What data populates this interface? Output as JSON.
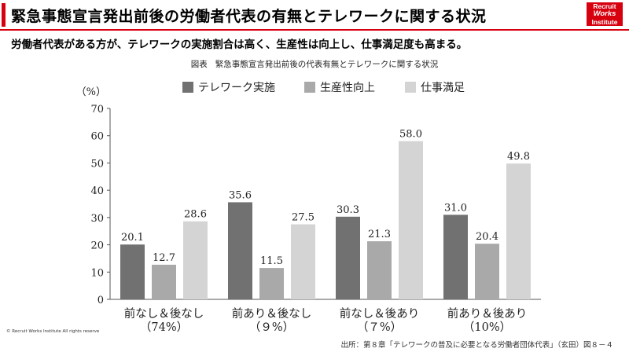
{
  "header": {
    "title": "緊急事態宣言発出前後の労働者代表の有無とテレワークに関する状況",
    "logo": [
      "Recruit",
      "Works",
      "Institute"
    ]
  },
  "subtitle": "労働者代表がある方が、テレワークの実施割合は高く、生産性は向上し、仕事満足度も高まる。",
  "caption": {
    "label": "図表",
    "text": "緊急事態宣言発出前後の代表有無とテレワークに関する状況"
  },
  "colors": {
    "accent": "#d7000f",
    "series": [
      "#717171",
      "#a9a9a9",
      "#d4d4d4"
    ],
    "axis": "#555555"
  },
  "chart_data": {
    "type": "bar",
    "yunit": "（%）",
    "ylim": [
      0,
      70
    ],
    "yticks": [
      0,
      10,
      20,
      30,
      40,
      50,
      60,
      70
    ],
    "grid": false,
    "legend_position": "top",
    "categories": [
      [
        "前なし＆後なし",
        "（74%）"
      ],
      [
        "前あり＆後なし",
        "（９%）"
      ],
      [
        "前なし＆後あり",
        "（７%）"
      ],
      [
        "前あり＆後あり",
        "（10%）"
      ]
    ],
    "series": [
      {
        "name": "テレワーク実施",
        "values": [
          20.1,
          35.6,
          30.3,
          31.0
        ],
        "labels": [
          "20.1",
          "35.6",
          "30.3",
          "31.0"
        ]
      },
      {
        "name": "生産性向上",
        "values": [
          12.7,
          11.5,
          21.3,
          20.4
        ],
        "labels": [
          "12.7",
          "11.5",
          "21.3",
          "20.4"
        ]
      },
      {
        "name": "仕事満足",
        "values": [
          28.6,
          27.5,
          58.0,
          49.8
        ],
        "labels": [
          "28.6",
          "27.5",
          "58.0",
          "49.8"
        ]
      }
    ]
  },
  "footer": {
    "copyright": "© Recruit Works Institute All rights reserve",
    "source": "出所：第８章「テレワークの普及に必要となる労働者団体代表」（玄田）図８－４"
  }
}
